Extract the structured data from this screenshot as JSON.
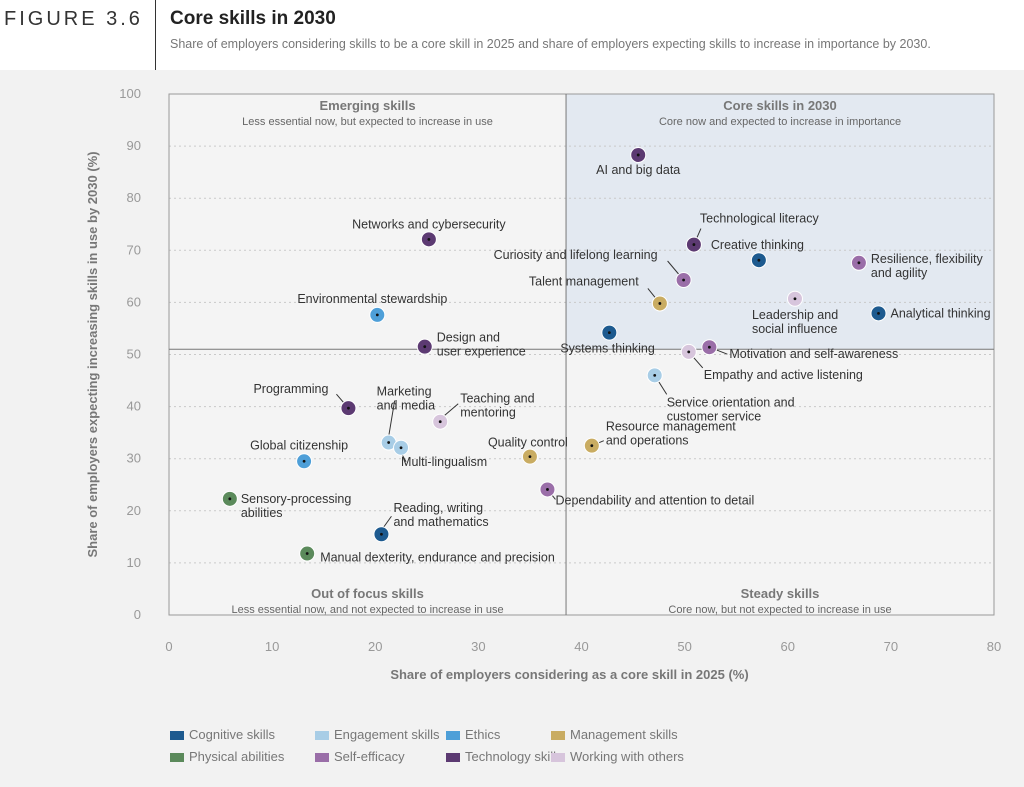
{
  "figure": {
    "label": "FIGURE 3.6",
    "title": "Core skills in 2030",
    "subtitle": "Share of employers considering skills to be a core skill in 2025 and share of employers expecting skills to increase in importance by 2030."
  },
  "colors": {
    "cognitive": "#1d5a8f",
    "engagement": "#a8cde6",
    "ethics": "#4e9fd8",
    "management": "#c9ac62",
    "physical": "#5b8a5b",
    "self_efficacy": "#9a6ea8",
    "technology": "#5c3a72",
    "working_with_others": "#d7c5dc"
  },
  "chart_data": {
    "type": "scatter",
    "xlabel": "Share of employers considering as a core skill in 2025 (%)",
    "ylabel": "Share of employers expecting increasing skills in use by 2030 (%)",
    "xlim": [
      0,
      80
    ],
    "ylim": [
      0,
      100
    ],
    "x_ticks": [
      "0",
      "10",
      "20",
      "30",
      "40",
      "50",
      "60",
      "70",
      "80"
    ],
    "y_ticks": [
      "0",
      "10",
      "20",
      "30",
      "40",
      "50",
      "60",
      "70",
      "80",
      "90",
      "100"
    ],
    "dividers": {
      "x": 38.5,
      "y": 51
    },
    "quadrants": [
      {
        "title": "Emerging skills",
        "subtitle": "Less essential now, but expected to increase in use"
      },
      {
        "title": "Core skills in 2030",
        "subtitle": "Core now and expected to increase in importance"
      },
      {
        "title": "Out of focus skills",
        "subtitle": "Less essential now, and not expected to increase in use"
      },
      {
        "title": "Steady skills",
        "subtitle": "Core now, but not expected to increase in use"
      }
    ],
    "legend": [
      {
        "key": "cognitive",
        "label": "Cognitive skills"
      },
      {
        "key": "engagement",
        "label": "Engagement skills"
      },
      {
        "key": "ethics",
        "label": "Ethics"
      },
      {
        "key": "management",
        "label": "Management skills"
      },
      {
        "key": "physical",
        "label": "Physical abilities"
      },
      {
        "key": "self_efficacy",
        "label": "Self-efficacy"
      },
      {
        "key": "technology",
        "label": "Technology skills"
      },
      {
        "key": "working_with_others",
        "label": "Working with others"
      }
    ],
    "points": [
      {
        "label": "AI and big data",
        "cat": "technology",
        "x": 45.5,
        "y": 88.3
      },
      {
        "label": "Technological literacy",
        "cat": "technology",
        "x": 50.9,
        "y": 71.1
      },
      {
        "label": "Creative thinking",
        "cat": "cognitive",
        "x": 57.2,
        "y": 68.1
      },
      {
        "label": "Resilience, flexibility\nand agility",
        "cat": "self_efficacy",
        "x": 66.9,
        "y": 67.6
      },
      {
        "label": "Curiosity and lifelong learning",
        "cat": "self_efficacy",
        "x": 49.9,
        "y": 64.3
      },
      {
        "label": "Talent management",
        "cat": "management",
        "x": 47.6,
        "y": 59.8
      },
      {
        "label": "Leadership and\nsocial influence",
        "cat": "working_with_others",
        "x": 60.7,
        "y": 60.7
      },
      {
        "label": "Analytical thinking",
        "cat": "cognitive",
        "x": 68.8,
        "y": 57.9
      },
      {
        "label": "Systems thinking",
        "cat": "cognitive",
        "x": 42.7,
        "y": 54.2
      },
      {
        "label": "Motivation and self-awareness",
        "cat": "self_efficacy",
        "x": 52.4,
        "y": 51.4
      },
      {
        "label": "Empathy and active listening",
        "cat": "working_with_others",
        "x": 50.4,
        "y": 50.5
      },
      {
        "label": "Service orientation and\ncustomer service",
        "cat": "engagement",
        "x": 47.1,
        "y": 46.0
      },
      {
        "label": "Networks and cybersecurity",
        "cat": "technology",
        "x": 25.2,
        "y": 72.1
      },
      {
        "label": "Environmental stewardship",
        "cat": "ethics",
        "x": 20.2,
        "y": 57.6
      },
      {
        "label": "Design and\nuser experience",
        "cat": "technology",
        "x": 24.8,
        "y": 51.5
      },
      {
        "label": "Programming",
        "cat": "technology",
        "x": 17.4,
        "y": 39.7
      },
      {
        "label": "Marketing\nand media",
        "cat": "engagement",
        "x": 21.3,
        "y": 33.1
      },
      {
        "label": "Teaching and\nmentoring",
        "cat": "working_with_others",
        "x": 26.3,
        "y": 37.1
      },
      {
        "label": "Multi-lingualism",
        "cat": "engagement",
        "x": 22.5,
        "y": 32.1
      },
      {
        "label": "Global citizenship",
        "cat": "ethics",
        "x": 13.1,
        "y": 29.5
      },
      {
        "label": "Quality control",
        "cat": "management",
        "x": 35.0,
        "y": 30.4
      },
      {
        "label": "Resource management\nand operations",
        "cat": "management",
        "x": 41.0,
        "y": 32.5
      },
      {
        "label": "Dependability and attention to detail",
        "cat": "self_efficacy",
        "x": 36.7,
        "y": 24.1
      },
      {
        "label": "Sensory-processing\nabilities",
        "cat": "physical",
        "x": 5.9,
        "y": 22.3
      },
      {
        "label": "Reading, writing\nand mathematics",
        "cat": "cognitive",
        "x": 20.6,
        "y": 15.5
      },
      {
        "label": "Manual dexterity, endurance and precision",
        "cat": "physical",
        "x": 13.4,
        "y": 11.8
      }
    ]
  }
}
